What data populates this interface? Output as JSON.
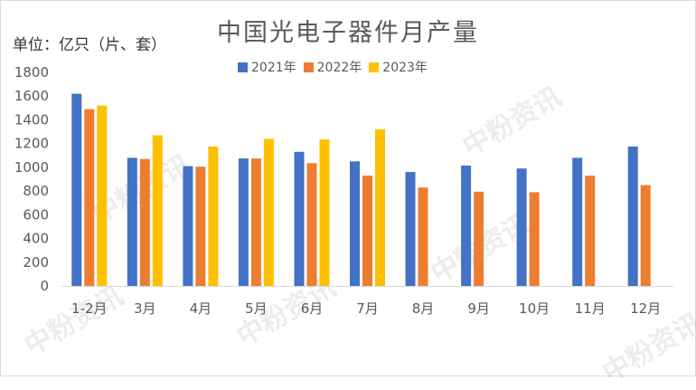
{
  "chart_data": {
    "type": "bar",
    "title": "中国光电子器件月产量",
    "ylabel": "单位：亿只（片、套）",
    "xlabel": "",
    "categories": [
      "1-2月",
      "3月",
      "4月",
      "5月",
      "6月",
      "7月",
      "8月",
      "9月",
      "10月",
      "11月",
      "12月"
    ],
    "series": [
      {
        "name": "2021年",
        "color": "#4472C4",
        "values": [
          1620,
          1080,
          1010,
          1075,
          1130,
          1050,
          960,
          1015,
          990,
          1080,
          1175
        ]
      },
      {
        "name": "2022年",
        "color": "#ED7D31",
        "values": [
          1490,
          1070,
          1005,
          1075,
          1035,
          930,
          830,
          795,
          790,
          930,
          850
        ]
      },
      {
        "name": "2023年",
        "color": "#FFC000",
        "values": [
          1520,
          1270,
          1175,
          1240,
          1235,
          1320,
          null,
          null,
          null,
          null,
          null
        ]
      }
    ],
    "ylim": [
      0,
      1800
    ],
    "yticks": [
      0,
      200,
      400,
      600,
      800,
      1000,
      1200,
      1400,
      1600,
      1800
    ],
    "grid": false,
    "legend_position": "top"
  },
  "watermark": "中粉资讯"
}
